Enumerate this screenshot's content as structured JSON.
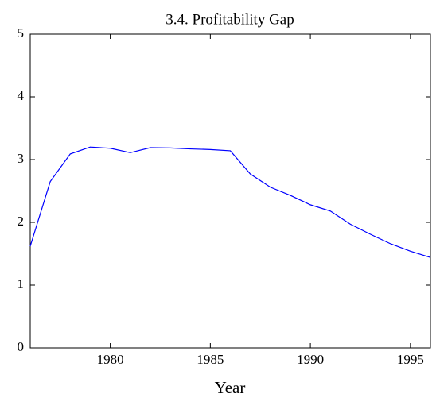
{
  "chart_data": {
    "type": "line",
    "title": "3.4. Profitability Gap",
    "xlabel": "Year",
    "x": [
      1976,
      1977,
      1978,
      1979,
      1980,
      1981,
      1982,
      1983,
      1984,
      1985,
      1986,
      1987,
      1988,
      1989,
      1990,
      1991,
      1992,
      1993,
      1994,
      1995,
      1996
    ],
    "series": [
      {
        "color": "#0000ff",
        "values": [
          1.62,
          2.65,
          3.09,
          3.2,
          3.18,
          3.11,
          3.19,
          3.185,
          3.17,
          3.16,
          3.14,
          2.77,
          2.56,
          2.43,
          2.28,
          2.18,
          1.97,
          1.81,
          1.66,
          1.54,
          1.44
        ]
      }
    ],
    "xlim": [
      1976,
      1996
    ],
    "xticks": [
      1980,
      1985,
      1990,
      1995
    ],
    "ylim": [
      0,
      5
    ],
    "yticks": [
      0,
      1,
      2,
      3,
      4,
      5
    ],
    "grid": false
  }
}
